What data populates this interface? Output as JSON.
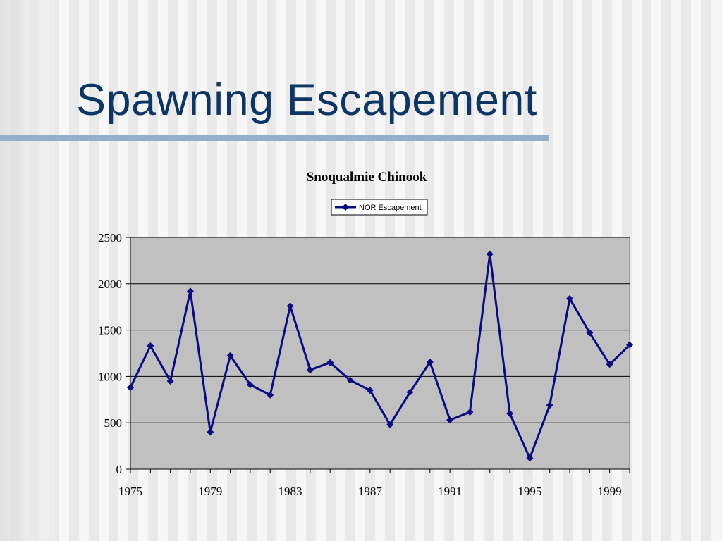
{
  "slide": {
    "title": "Spawning Escapement"
  },
  "colors": {
    "title": "#0d3566",
    "rule": "#93afcc",
    "plot_background": "#c0c0c0",
    "series_line": "#0a0a82"
  },
  "chart_data": {
    "type": "line",
    "title": "Snoqualmie Chinook",
    "xlabel": "",
    "ylabel": "",
    "x": [
      1975,
      1976,
      1977,
      1978,
      1979,
      1980,
      1981,
      1982,
      1983,
      1984,
      1985,
      1986,
      1987,
      1988,
      1989,
      1990,
      1991,
      1992,
      1993,
      1994,
      1995,
      1996,
      1997,
      1998,
      1999,
      2000
    ],
    "series": [
      {
        "name": "NOR Escapement",
        "marker": "diamond",
        "values": [
          880,
          1330,
          950,
          1920,
          400,
          1225,
          910,
          800,
          1760,
          1070,
          1150,
          960,
          850,
          480,
          830,
          1155,
          530,
          615,
          2320,
          600,
          120,
          690,
          1840,
          1470,
          1130,
          1340
        ]
      }
    ],
    "x_tick_labels": [
      "1975",
      "1979",
      "1983",
      "1987",
      "1991",
      "1995",
      "1999"
    ],
    "y_tick_labels": [
      "0",
      "500",
      "1000",
      "1500",
      "2000",
      "2500"
    ],
    "ylim": [
      0,
      2500
    ],
    "grid": "horizontal",
    "legend": "top-center"
  }
}
